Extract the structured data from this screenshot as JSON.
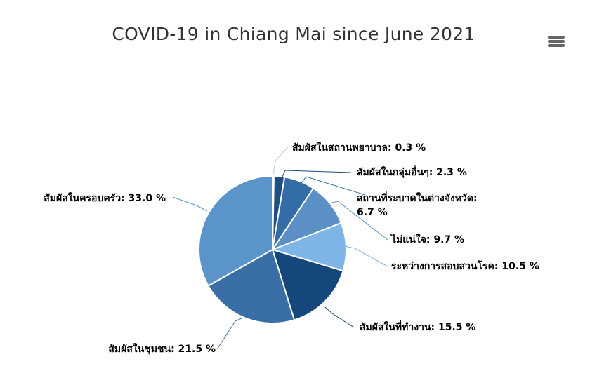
{
  "chart_data": {
    "type": "pie",
    "title": "COVID-19 in Chiang Mai since June 2021",
    "unit": "%",
    "slices": [
      {
        "name": "สัมผัสในสถานพยาบาล",
        "value": 0.3,
        "color": "#d8e5f2",
        "label": "สัมผัสในสถานพยาบาล: 0.3 %"
      },
      {
        "name": "สัมผัสในกลุ่มอื่นๆ",
        "value": 2.3,
        "color": "#1f4e82",
        "label": "สัมผัสในกลุ่มอื่นๆ: 2.3 %"
      },
      {
        "name": "สถานที่ระบาดในต่างจังหวัด",
        "value": 6.7,
        "color": "#336ca6",
        "label_lines": [
          "สถานที่ระบาดในต่างจังหวัด:",
          "6.7 %"
        ]
      },
      {
        "name": "ไม่แน่ใจ",
        "value": 9.7,
        "color": "#5b8fc6",
        "label": "ไม่แน่ใจ: 9.7 %"
      },
      {
        "name": "ระหว่างการสอบสวนโรค",
        "value": 10.5,
        "color": "#7eb4e6",
        "label": "ระหว่างการสอบสวนโรค: 10.5 %"
      },
      {
        "name": "สัมผัสในที่ทำงาน",
        "value": 15.5,
        "color": "#15467c",
        "label": "สัมผัสในที่ทำงาน: 15.5 %"
      },
      {
        "name": "สัมผัสในชุมชน",
        "value": 21.5,
        "color": "#3a6ea6",
        "label": "สัมผัสในชุมชน: 21.5 %"
      },
      {
        "name": "สัมผัสในครอบครัว",
        "value": 33.0,
        "color": "#5b93cb",
        "label": "สัมผัสในครอบครัว: 33.0 %"
      }
    ]
  },
  "toolbar": {
    "menu_icon": "hamburger-menu-icon"
  }
}
